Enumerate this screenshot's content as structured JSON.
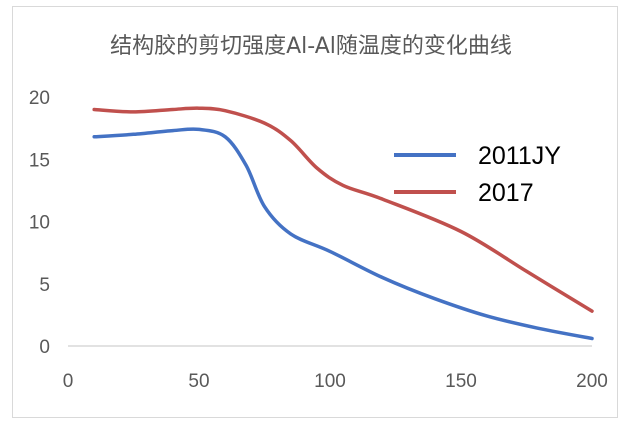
{
  "chart_data": {
    "type": "line",
    "title": "结构胶的剪切强度Al-Al随温度的变化曲线",
    "xlabel": "",
    "ylabel": "",
    "xlim": [
      0,
      200
    ],
    "ylim": [
      0,
      20
    ],
    "x_ticks": [
      0,
      50,
      100,
      150,
      200
    ],
    "y_ticks": [
      0,
      5,
      10,
      15,
      20
    ],
    "grid": false,
    "legend_position": "right",
    "series": [
      {
        "name": "2011JY",
        "color": "#4472C4",
        "points": [
          [
            10,
            16.8
          ],
          [
            25,
            17.0
          ],
          [
            40,
            17.3
          ],
          [
            50,
            17.4
          ],
          [
            60,
            16.8
          ],
          [
            68,
            14.5
          ],
          [
            75,
            11.2
          ],
          [
            85,
            9.0
          ],
          [
            100,
            7.6
          ],
          [
            120,
            5.5
          ],
          [
            140,
            3.8
          ],
          [
            160,
            2.4
          ],
          [
            180,
            1.4
          ],
          [
            200,
            0.6
          ]
        ]
      },
      {
        "name": "2017",
        "color": "#C0504D",
        "points": [
          [
            10,
            19.0
          ],
          [
            25,
            18.8
          ],
          [
            40,
            19.0
          ],
          [
            50,
            19.1
          ],
          [
            60,
            18.9
          ],
          [
            75,
            17.9
          ],
          [
            85,
            16.5
          ],
          [
            95,
            14.3
          ],
          [
            105,
            12.9
          ],
          [
            120,
            11.8
          ],
          [
            150,
            9.2
          ],
          [
            175,
            6.0
          ],
          [
            200,
            2.8
          ]
        ]
      }
    ]
  }
}
